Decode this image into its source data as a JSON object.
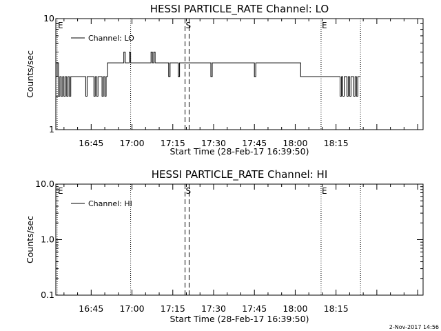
{
  "footer": {
    "timestamp": "2-Nov-2017 14:56"
  },
  "chart_data": [
    {
      "type": "line",
      "title": "HESSI PARTICLE_RATE Channel: LO",
      "xlabel": "Start Time (28-Feb-17 16:39:50)",
      "ylabel": "Counts/sec",
      "y_scale": "log",
      "ylim": [
        1,
        10
      ],
      "y_ticks": [
        1,
        10
      ],
      "y_tick_labels": [
        "1",
        "10"
      ],
      "x_range_min": [
        -8,
        127
      ],
      "x_ticks_min": [
        5,
        20,
        35,
        50,
        65,
        80,
        95
      ],
      "x_tick_labels": [
        "16:45",
        "17:00",
        "17:15",
        "17:30",
        "17:45",
        "18:00",
        "18:15"
      ],
      "legend": {
        "position": "top-left",
        "entries": [
          {
            "label": "Channel: LO",
            "color": "#000000"
          }
        ]
      },
      "markers": [
        {
          "label": "E",
          "x_min": -7.5,
          "style": "dotted"
        },
        {
          "label": "",
          "x_min": 19.5,
          "style": "dotted"
        },
        {
          "label": "S",
          "x_min": 39.5,
          "style": "dashed"
        },
        {
          "label": "",
          "x_min": 41.0,
          "style": "dashed"
        },
        {
          "label": "E",
          "x_min": 89.5,
          "style": "dotted"
        },
        {
          "label": "",
          "x_min": 104.0,
          "style": "dotted"
        }
      ],
      "series": [
        {
          "color": "#000000",
          "x_min": [
            -8,
            -7.5,
            -7,
            -6.5,
            -6,
            -5.5,
            -5,
            -4.5,
            -4,
            -3.5,
            -3,
            -2.5,
            -2,
            -1.5,
            -1,
            -0.5,
            0,
            0.5,
            1,
            1.5,
            2,
            2.5,
            3,
            3.5,
            4,
            4.5,
            5,
            5.5,
            6,
            6.5,
            7,
            7.5,
            8,
            8.5,
            9,
            9.5,
            10,
            10.5,
            11,
            11.5,
            12,
            12.5,
            13,
            13.5,
            14,
            14.5,
            15,
            15.5,
            16,
            16.5,
            17,
            17.5,
            18,
            18.5,
            19,
            19.5,
            20,
            20.5,
            21,
            21.5,
            22,
            22.5,
            23,
            23.5,
            24,
            24.5,
            25,
            25.5,
            26,
            26.5,
            27,
            27.5,
            28,
            28.5,
            29,
            29.5,
            30,
            30.5,
            31,
            31.5,
            32,
            32.5,
            33,
            33.5,
            34,
            34.5,
            35,
            35.5,
            36,
            36.5,
            37,
            37.5,
            38,
            38.5,
            39,
            39.5,
            40,
            40.5,
            41,
            41.5,
            42,
            42.5,
            43,
            43.5,
            44,
            44.5,
            45,
            45.5,
            46,
            46.5,
            47,
            47.5,
            48,
            48.5,
            49,
            49.5,
            50,
            50.5,
            51,
            51.5,
            52,
            52.5,
            53,
            53.5,
            54,
            54.5,
            55,
            55.5,
            56,
            56.5,
            57,
            57.5,
            58,
            58.5,
            59,
            59.5,
            60,
            60.5,
            61,
            61.5,
            62,
            62.5,
            63,
            63.5,
            64,
            64.5,
            65,
            65.5,
            66,
            66.5,
            67,
            67.5,
            68,
            68.5,
            69,
            69.5,
            70,
            70.5,
            71,
            71.5,
            72,
            72.5,
            73,
            73.5,
            74,
            74.5,
            75,
            75.5,
            76,
            76.5,
            77,
            77.5,
            78,
            78.5,
            79,
            79.5,
            80,
            80.5,
            81,
            81.5,
            82,
            82.5,
            83,
            83.5,
            84,
            84.5,
            85,
            85.5,
            86,
            86.5,
            87,
            87.5,
            88,
            88.5,
            89,
            89.5,
            90,
            90.5,
            91,
            91.5,
            92,
            92.5,
            93,
            93.5,
            94,
            94.5,
            95,
            95.5,
            96,
            96.5,
            97,
            97.5,
            98,
            98.5,
            99,
            99.5,
            100,
            100.5,
            101,
            101.5,
            102,
            102.5,
            103,
            103.5,
            104
          ],
          "y": [
            3,
            4,
            2,
            3,
            2,
            3,
            2,
            3,
            2,
            3,
            2,
            3,
            3,
            3,
            3,
            3,
            3,
            3,
            3,
            3,
            3,
            3,
            2,
            3,
            3,
            3,
            3,
            3,
            2,
            3,
            2,
            3,
            3,
            3,
            2,
            3,
            2,
            3,
            4,
            4,
            4,
            4,
            4,
            4,
            4,
            4,
            4,
            4,
            4,
            4,
            5,
            4,
            4,
            4,
            5,
            4,
            4,
            4,
            4,
            4,
            4,
            4,
            4,
            4,
            4,
            4,
            4,
            4,
            4,
            4,
            5,
            4,
            5,
            4,
            4,
            4,
            4,
            4,
            4,
            4,
            4,
            4,
            4,
            3,
            4,
            4,
            4,
            4,
            4,
            4,
            3,
            4,
            4,
            4,
            4,
            4,
            4,
            4,
            4,
            4,
            4,
            4,
            4,
            4,
            4,
            4,
            4,
            4,
            4,
            4,
            4,
            4,
            4,
            4,
            3,
            4,
            4,
            4,
            4,
            4,
            4,
            4,
            4,
            4,
            4,
            4,
            4,
            4,
            4,
            4,
            4,
            4,
            4,
            4,
            4,
            4,
            4,
            4,
            4,
            4,
            4,
            4,
            4,
            4,
            4,
            4,
            3,
            4,
            4,
            4,
            4,
            4,
            4,
            4,
            4,
            4,
            4,
            4,
            4,
            4,
            4,
            4,
            4,
            4,
            4,
            4,
            4,
            4,
            4,
            4,
            4,
            4,
            4,
            4,
            4,
            4,
            4,
            4,
            4,
            4,
            3,
            3,
            3,
            3,
            3,
            3,
            3,
            3,
            3,
            3,
            3,
            3,
            3,
            3,
            3,
            3,
            3,
            3,
            3,
            3,
            3,
            3,
            3,
            3,
            3,
            3,
            3,
            3,
            3,
            2,
            3,
            2,
            3,
            3,
            2,
            3,
            2,
            3,
            3,
            2,
            3,
            2,
            3,
            3,
            3,
            3
          ]
        }
      ]
    },
    {
      "type": "line",
      "title": "HESSI PARTICLE_RATE Channel: HI",
      "xlabel": "Start Time (28-Feb-17 16:39:50)",
      "ylabel": "Counts/sec",
      "y_scale": "log",
      "ylim": [
        0.1,
        10
      ],
      "y_ticks": [
        0.1,
        1,
        10
      ],
      "y_tick_labels": [
        "0.1",
        "1.0",
        "10.0"
      ],
      "x_range_min": [
        -8,
        127
      ],
      "x_ticks_min": [
        5,
        20,
        35,
        50,
        65,
        80,
        95
      ],
      "x_tick_labels": [
        "16:45",
        "17:00",
        "17:15",
        "17:30",
        "17:45",
        "18:00",
        "18:15"
      ],
      "legend": {
        "position": "top-left",
        "entries": [
          {
            "label": "Channel: HI",
            "color": "#000000"
          }
        ]
      },
      "markers": [
        {
          "label": "E",
          "x_min": -7.5,
          "style": "dotted"
        },
        {
          "label": "",
          "x_min": 19.5,
          "style": "dotted"
        },
        {
          "label": "S",
          "x_min": 39.5,
          "style": "dashed"
        },
        {
          "label": "",
          "x_min": 41.0,
          "style": "dashed"
        },
        {
          "label": "E",
          "x_min": 89.5,
          "style": "dotted"
        },
        {
          "label": "",
          "x_min": 104.0,
          "style": "dotted"
        }
      ],
      "series": []
    }
  ]
}
